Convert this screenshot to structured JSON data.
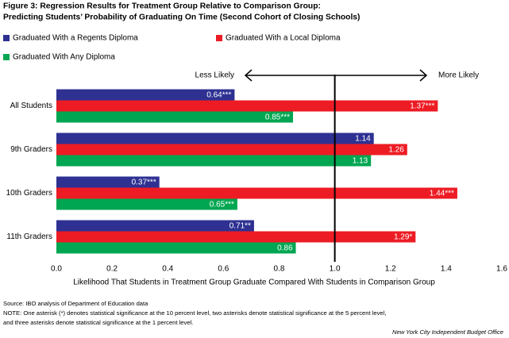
{
  "chart_data": {
    "type": "hbar",
    "title": "Figure 3: Regression Results for Treatment Group Relative to Comparison Group:",
    "subtitle": "Predicting Students’ Probability of Graduating On Time (Second Cohort of Closing Schools)",
    "categories": [
      "All Students",
      "9th Graders",
      "10th Graders",
      "11th Graders"
    ],
    "series": [
      {
        "name": "Graduated With a Regents Diploma",
        "color": "#2e3192",
        "values": [
          0.64,
          1.14,
          0.37,
          0.71
        ],
        "value_labels": [
          "0.64***",
          "1.14",
          "0.37***",
          "0.71**"
        ]
      },
      {
        "name": "Graduated With a Local Diploma",
        "color": "#ed1c24",
        "values": [
          1.37,
          1.26,
          1.44,
          1.29
        ],
        "value_labels": [
          "1.37***",
          "1.26",
          "1.44***",
          "1.29*"
        ]
      },
      {
        "name": "Graduated With Any Diploma",
        "color": "#00a651",
        "values": [
          0.85,
          1.13,
          0.65,
          0.86
        ],
        "value_labels": [
          "0.85***",
          "1.13",
          "0.65***",
          "0.86"
        ]
      }
    ],
    "xlim": [
      0,
      1.6
    ],
    "xticks": [
      {
        "value": 0,
        "label": "0.0"
      },
      0.2,
      0.4,
      0.6,
      0.8,
      {
        "value": 1,
        "label": "1.0"
      },
      1.2,
      1.4,
      1.6
    ],
    "reference_line": 1,
    "xlabel": "Likelihood That Students in Treatment Group Graduate Compared With Students in Comparison Group",
    "annotations": [
      "Less Likely",
      "More Likely"
    ],
    "source": "Source: IBO analysis of Department of Education data",
    "note": [
      "NOTE: One asterisk (*) denotes statistical significance at the 10 percent level, two asterisks denote statistical significance at the 5 percent level,",
      "and three asterisks denote statistical significance at the 1 percent level."
    ],
    "credit": "New York City Independent Budget Office"
  }
}
